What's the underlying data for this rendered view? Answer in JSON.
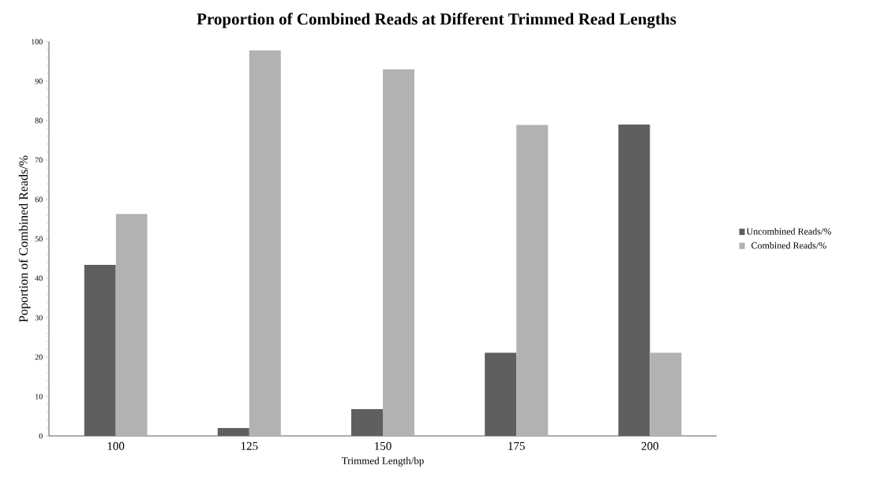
{
  "chart_data": {
    "type": "bar",
    "title": "Proportion of Combined Reads at Different Trimmed Read Lengths",
    "xlabel": "Trimmed Length/bp",
    "ylabel": "Poportion of Combined Reads/%",
    "categories": [
      "100",
      "125",
      "150",
      "175",
      "200"
    ],
    "series": [
      {
        "name": "Uncombined Reads/%",
        "color": "#5f5f5f",
        "values": [
          43.4,
          2.0,
          6.8,
          21.1,
          79.0
        ]
      },
      {
        "name": "Combined Reads/%",
        "color": "#b2b2b2",
        "values": [
          56.3,
          97.8,
          93.0,
          78.9,
          21.1
        ]
      }
    ],
    "ylim": [
      0,
      100
    ],
    "yticks": [
      0,
      10,
      20,
      30,
      40,
      50,
      60,
      70,
      80,
      90,
      100
    ],
    "legend": "right",
    "grid": false
  }
}
